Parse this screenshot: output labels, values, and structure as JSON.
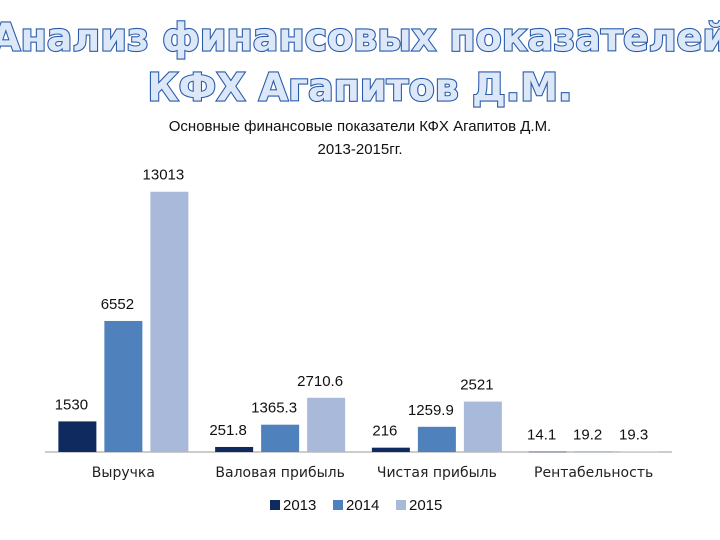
{
  "slide": {
    "title_lines": [
      "Анализ финансовых показателей",
      "КФХ Агапитов Д.М."
    ]
  },
  "chart_data": {
    "type": "bar",
    "title": "Основные финансовые показатели КФХ Агапитов Д.М.",
    "subtitle": "2013-2015гг.",
    "categories": [
      "Выручка",
      "Валовая прибыль",
      "Чистая прибыль",
      "Рентабельность"
    ],
    "series": [
      {
        "name": "2013",
        "color": "#0e2a5e",
        "values": [
          1530,
          251.8,
          216,
          14.1
        ]
      },
      {
        "name": "2014",
        "color": "#4f81bd",
        "values": [
          6552,
          1365.3,
          1259.9,
          19.2
        ]
      },
      {
        "name": "2015",
        "color": "#a9b9d9",
        "values": [
          13013,
          2710.6,
          2521,
          19.3
        ]
      }
    ],
    "ylim": [
      0,
      14000
    ],
    "legend": "bottom"
  }
}
